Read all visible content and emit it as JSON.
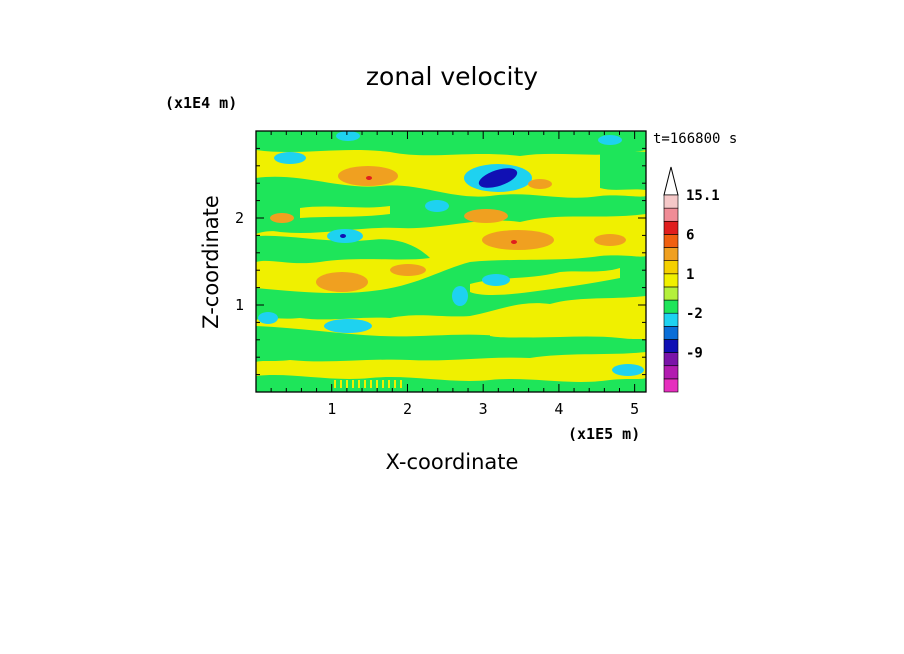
{
  "chart_data": {
    "type": "heatmap",
    "title": "zonal velocity",
    "xlabel": "X-coordinate",
    "ylabel": "Z-coordinate",
    "x_unit_label": "(x1E5 m)",
    "y_unit_label": "(x1E4 m)",
    "time_label": "t=166800 s",
    "xlim": [
      0,
      5.15
    ],
    "ylim": [
      0,
      3.0
    ],
    "xticks": [
      1,
      2,
      3,
      4,
      5
    ],
    "yticks": [
      1,
      2
    ],
    "xtick_labels": [
      "1",
      "2",
      "3",
      "4",
      "5"
    ],
    "ytick_labels": [
      "1",
      "2"
    ],
    "colorbar": {
      "levels": [
        -15,
        -12,
        -9,
        -6,
        -3,
        -2,
        -1,
        0,
        1,
        2,
        3,
        6,
        9,
        12,
        15.1
      ],
      "colors": [
        "#e62fbe",
        "#b21cb0",
        "#7a14a8",
        "#1010b4",
        "#0a6ed8",
        "#1ed2f0",
        "#1ee55a",
        "#b4f03c",
        "#f0f000",
        "#f5d000",
        "#f0a020",
        "#f06010",
        "#e01e1e",
        "#f08c96",
        "#f5c8c8"
      ],
      "labels": [
        "15.1",
        "6",
        "1",
        "-2",
        "-9"
      ],
      "extend_max": true
    },
    "dominant_value_ranges": [
      {
        "range": "0 to 1",
        "color": "#f0f000",
        "description": "background"
      },
      {
        "range": "-1 to 0",
        "color": "#1ee55a",
        "description": "broad bands"
      },
      {
        "range": "-3 to -2",
        "color": "#1ed2f0",
        "description": "small patches"
      },
      {
        "range": "2 to 6",
        "color": "#f0a020",
        "description": "small patches"
      },
      {
        "range": "-9 to -3",
        "color": "#1010b4",
        "description": "minimum near x=3.1, z=2.4"
      }
    ]
  }
}
